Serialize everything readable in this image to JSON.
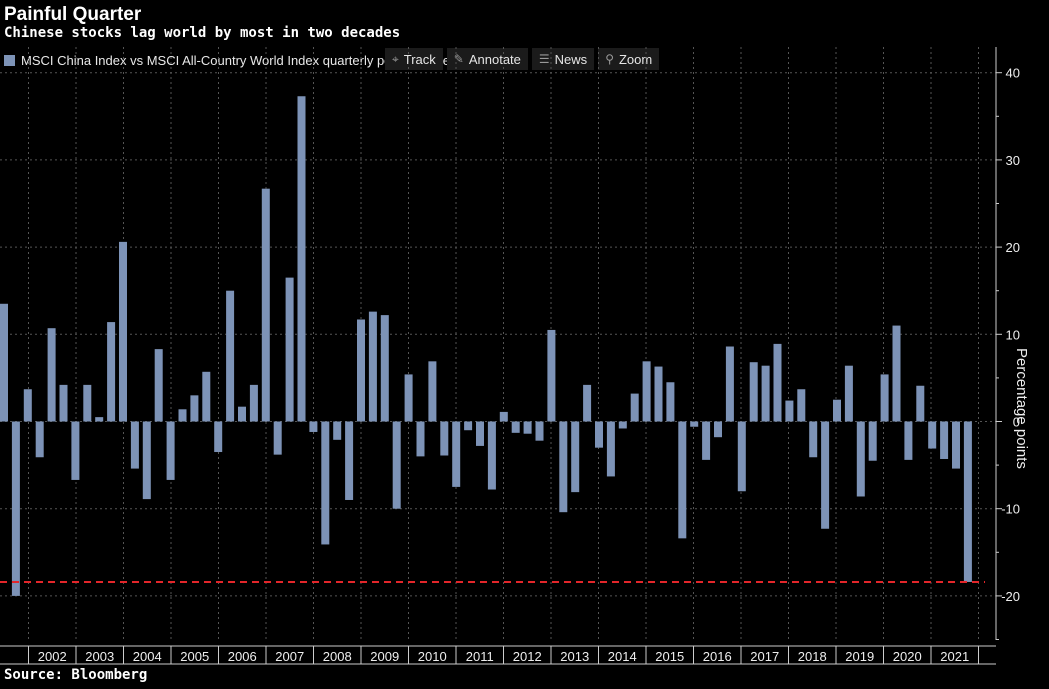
{
  "header": {
    "title": "Painful Quarter",
    "subtitle": "Chinese stocks lag world by most in two decades"
  },
  "footer": {
    "source": "Source: Bloomberg"
  },
  "toolbar": {
    "track": "Track",
    "annotate": "Annotate",
    "news": "News",
    "zoom": "Zoom"
  },
  "chart_data": {
    "type": "bar",
    "title": "Painful Quarter",
    "subtitle": "Chinese stocks lag world by most in two decades",
    "series_name": "MSCI China Index vs MSCI All-Country World Index quarterly performance spread",
    "ylabel": "Percentage points",
    "ylim": [
      -25,
      40
    ],
    "yticks": [
      40,
      30,
      20,
      10,
      0,
      -10,
      -20
    ],
    "years": [
      "2002",
      "2003",
      "2004",
      "2005",
      "2006",
      "2007",
      "2008",
      "2009",
      "2010",
      "2011",
      "2012",
      "2013",
      "2014",
      "2015",
      "2016",
      "2017",
      "2018",
      "2019",
      "2020",
      "2021"
    ],
    "values": [
      13.5,
      -20,
      3.7,
      -4.1,
      10.7,
      4.2,
      -6.7,
      4.2,
      0.5,
      11.4,
      20.6,
      -5.4,
      -8.9,
      8.3,
      -6.7,
      1.4,
      3.0,
      5.7,
      -3.5,
      15.0,
      1.7,
      4.2,
      26.7,
      -3.8,
      16.5,
      37.3,
      -1.2,
      -14.1,
      -2.1,
      -9.0,
      11.7,
      12.6,
      12.2,
      -10.0,
      5.4,
      -4.0,
      6.9,
      -3.9,
      -7.5,
      -1.0,
      -2.8,
      -7.8,
      1.1,
      -1.3,
      -1.4,
      -2.2,
      10.5,
      -10.4,
      -8.1,
      4.2,
      -3.0,
      -6.3,
      -0.8,
      3.2,
      6.9,
      6.3,
      4.5,
      -13.4,
      -0.6,
      -4.4,
      -1.8,
      8.6,
      -8.0,
      6.8,
      6.4,
      8.9,
      2.4,
      3.7,
      -4.1,
      -12.3,
      2.5,
      6.4,
      -8.6,
      -4.5,
      5.4,
      11.0,
      -4.4,
      4.1,
      -3.1,
      -4.3,
      -5.4,
      -18.4
    ],
    "reference_line": -18.4,
    "grid": true,
    "colors": {
      "bar": "#7d93b7",
      "reference_line": "#e3262a",
      "grid": "#555555",
      "background": "#000000"
    }
  }
}
